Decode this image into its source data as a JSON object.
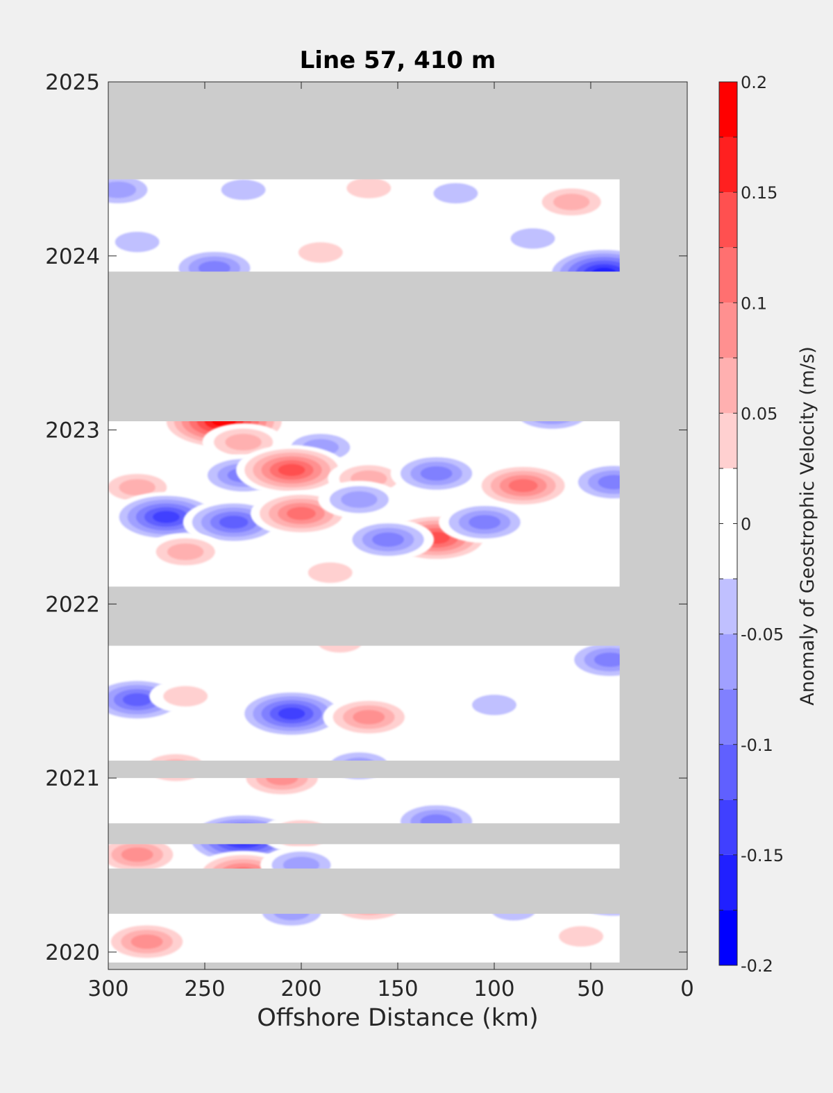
{
  "chart_data": {
    "type": "heatmap",
    "title": "Line 57, 410 m",
    "xlabel": "Offshore Distance (km)",
    "ylabel": "",
    "xlim": [
      300,
      0
    ],
    "ylim": [
      2019.9,
      2025
    ],
    "x_reversed": true,
    "xticks": [
      300,
      250,
      200,
      150,
      100,
      50,
      0
    ],
    "xtick_labels": [
      "300",
      "250",
      "200",
      "150",
      "100",
      "50",
      "0"
    ],
    "yticks": [
      2020,
      2021,
      2022,
      2023,
      2024,
      2025
    ],
    "ytick_labels": [
      "2020",
      "2021",
      "2022",
      "2023",
      "2024",
      "2025"
    ],
    "colorbar": {
      "label": "Anomaly of Geostrophic Velocity (m/s)",
      "clim": [
        -0.2,
        0.2
      ],
      "ticks": [
        -0.2,
        -0.15,
        -0.1,
        -0.05,
        0,
        0.05,
        0.1,
        0.15,
        0.2
      ],
      "tick_labels": [
        "-0.2",
        "-0.15",
        "-0.1",
        "-0.05",
        "0",
        "0.05",
        "0.1",
        "0.15",
        "0.2"
      ],
      "levels": [
        {
          "from": -0.2,
          "to": -0.175,
          "color": "#0000ff"
        },
        {
          "from": -0.175,
          "to": -0.15,
          "color": "#2020ff"
        },
        {
          "from": -0.15,
          "to": -0.125,
          "color": "#4040ff"
        },
        {
          "from": -0.125,
          "to": -0.1,
          "color": "#6060ff"
        },
        {
          "from": -0.1,
          "to": -0.075,
          "color": "#8080ff"
        },
        {
          "from": -0.075,
          "to": -0.05,
          "color": "#a0a0ff"
        },
        {
          "from": -0.05,
          "to": -0.025,
          "color": "#c0c0ff"
        },
        {
          "from": -0.025,
          "to": 0,
          "color": "#ffffff"
        },
        {
          "from": 0,
          "to": 0.025,
          "color": "#ffffff"
        },
        {
          "from": 0.025,
          "to": 0.05,
          "color": "#ffd0d0"
        },
        {
          "from": 0.05,
          "to": 0.075,
          "color": "#ffb0b0"
        },
        {
          "from": 0.075,
          "to": 0.1,
          "color": "#ff9090"
        },
        {
          "from": 0.1,
          "to": 0.125,
          "color": "#ff7070"
        },
        {
          "from": 0.125,
          "to": 0.15,
          "color": "#ff5050"
        },
        {
          "from": 0.15,
          "to": 0.175,
          "color": "#ff2020"
        },
        {
          "from": 0.175,
          "to": 0.2,
          "color": "#ff0000"
        }
      ]
    },
    "missing_color": "#cccccc",
    "data_coverage_x": [
      300,
      35
    ],
    "missing_periods": [
      {
        "t0": 2024.44,
        "t1": 2025.0
      },
      {
        "t0": 2023.59,
        "t1": 2023.91
      },
      {
        "t0": 2023.05,
        "t1": 2023.65
      },
      {
        "t0": 2021.76,
        "t1": 2022.1
      },
      {
        "t0": 2021.0,
        "t1": 2021.1
      },
      {
        "t0": 2020.62,
        "t1": 2020.74
      },
      {
        "t0": 2020.22,
        "t1": 2020.48
      },
      {
        "t0": 2019.9,
        "t1": 2019.94
      }
    ],
    "features": [
      {
        "x": 295,
        "t": 2024.38,
        "value": -0.07
      },
      {
        "x": 230,
        "t": 2024.38,
        "value": -0.06
      },
      {
        "x": 165,
        "t": 2024.39,
        "value": 0.06
      },
      {
        "x": 120,
        "t": 2024.36,
        "value": -0.06
      },
      {
        "x": 60,
        "t": 2024.31,
        "value": 0.08
      },
      {
        "x": 80,
        "t": 2024.1,
        "value": -0.05
      },
      {
        "x": 285,
        "t": 2024.08,
        "value": -0.06
      },
      {
        "x": 245,
        "t": 2023.93,
        "value": -0.1
      },
      {
        "x": 190,
        "t": 2024.02,
        "value": 0.05
      },
      {
        "x": 43,
        "t": 2023.9,
        "value": -0.18
      },
      {
        "x": 240,
        "t": 2023.05,
        "value": 0.19
      },
      {
        "x": 70,
        "t": 2023.1,
        "value": -0.09
      },
      {
        "x": 230,
        "t": 2022.93,
        "value": 0.07
      },
      {
        "x": 190,
        "t": 2022.9,
        "value": -0.07
      },
      {
        "x": 230,
        "t": 2022.74,
        "value": -0.1
      },
      {
        "x": 205,
        "t": 2022.77,
        "value": 0.14
      },
      {
        "x": 165,
        "t": 2022.72,
        "value": 0.07
      },
      {
        "x": 130,
        "t": 2022.75,
        "value": -0.1
      },
      {
        "x": 285,
        "t": 2022.67,
        "value": 0.08
      },
      {
        "x": 85,
        "t": 2022.68,
        "value": 0.12
      },
      {
        "x": 38,
        "t": 2022.7,
        "value": -0.09
      },
      {
        "x": 270,
        "t": 2022.5,
        "value": -0.16
      },
      {
        "x": 235,
        "t": 2022.47,
        "value": -0.12
      },
      {
        "x": 200,
        "t": 2022.52,
        "value": 0.12
      },
      {
        "x": 170,
        "t": 2022.6,
        "value": -0.07
      },
      {
        "x": 130,
        "t": 2022.38,
        "value": 0.15
      },
      {
        "x": 155,
        "t": 2022.37,
        "value": -0.09
      },
      {
        "x": 105,
        "t": 2022.47,
        "value": -0.09
      },
      {
        "x": 260,
        "t": 2022.3,
        "value": 0.07
      },
      {
        "x": 185,
        "t": 2022.18,
        "value": 0.06
      },
      {
        "x": 40,
        "t": 2021.68,
        "value": -0.1
      },
      {
        "x": 180,
        "t": 2021.78,
        "value": 0.06
      },
      {
        "x": 285,
        "t": 2021.45,
        "value": -0.13
      },
      {
        "x": 205,
        "t": 2021.37,
        "value": -0.15
      },
      {
        "x": 165,
        "t": 2021.35,
        "value": 0.09
      },
      {
        "x": 260,
        "t": 2021.47,
        "value": 0.06
      },
      {
        "x": 100,
        "t": 2021.42,
        "value": -0.05
      },
      {
        "x": 210,
        "t": 2021.0,
        "value": 0.11
      },
      {
        "x": 170,
        "t": 2021.07,
        "value": -0.08
      },
      {
        "x": 265,
        "t": 2021.06,
        "value": 0.07
      },
      {
        "x": 130,
        "t": 2020.75,
        "value": -0.09
      },
      {
        "x": 230,
        "t": 2020.65,
        "value": -0.17
      },
      {
        "x": 285,
        "t": 2020.56,
        "value": 0.1
      },
      {
        "x": 200,
        "t": 2020.68,
        "value": 0.07
      },
      {
        "x": 230,
        "t": 2020.45,
        "value": 0.12
      },
      {
        "x": 200,
        "t": 2020.5,
        "value": -0.07
      },
      {
        "x": 165,
        "t": 2020.28,
        "value": 0.11
      },
      {
        "x": 38,
        "t": 2020.33,
        "value": -0.15
      },
      {
        "x": 205,
        "t": 2020.23,
        "value": -0.08
      },
      {
        "x": 90,
        "t": 2020.24,
        "value": -0.06
      },
      {
        "x": 280,
        "t": 2020.06,
        "value": 0.09
      },
      {
        "x": 55,
        "t": 2020.09,
        "value": 0.05
      }
    ]
  }
}
